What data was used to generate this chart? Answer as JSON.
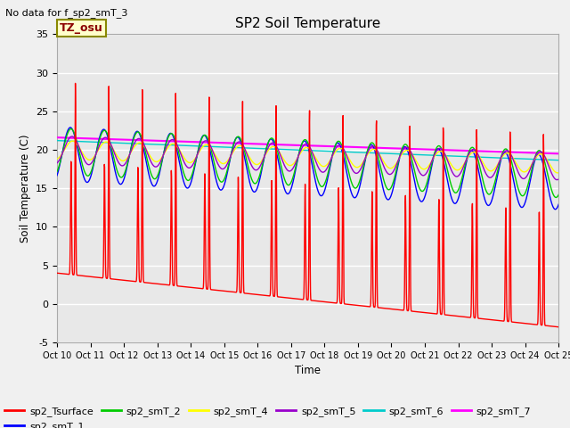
{
  "title": "SP2 Soil Temperature",
  "no_data_text": "No data for f_sp2_smT_3",
  "tz_label": "TZ_osu",
  "ylabel": "Soil Temperature (C)",
  "xlabel": "Time",
  "ylim": [
    -5,
    35
  ],
  "ytick_vals": [
    -5,
    0,
    5,
    10,
    15,
    20,
    25,
    30,
    35
  ],
  "xtick_labels": [
    "Oct 10",
    "Oct 11",
    "Oct 12",
    "Oct 13",
    "Oct 14",
    "Oct 15",
    "Oct 16",
    "Oct 17",
    "Oct 18",
    "Oct 19",
    "Oct 20",
    "Oct 21",
    "Oct 22",
    "Oct 23",
    "Oct 24",
    "Oct 25"
  ],
  "background_color": "#e8e8e8",
  "grid_color": "#ffffff",
  "outer_bg": "#f0f0f0",
  "series_colors": {
    "sp2_Tsurface": "#ff0000",
    "sp2_smT_1": "#0000ff",
    "sp2_smT_2": "#00cc00",
    "sp2_smT_4": "#ffff00",
    "sp2_smT_5": "#9900cc",
    "sp2_smT_6": "#00cccc",
    "sp2_smT_7": "#ff00ff"
  },
  "n_days": 15,
  "pts_per_day": 144
}
